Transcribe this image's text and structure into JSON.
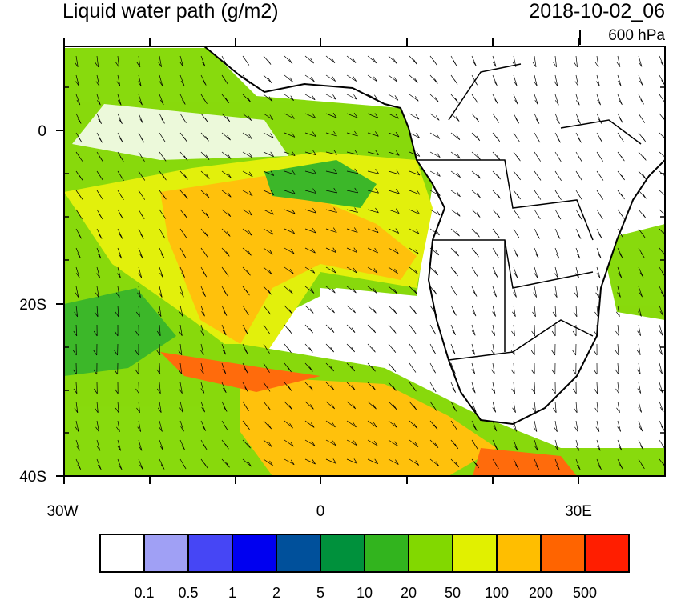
{
  "title": "Liquid water path (g/m2)",
  "date": "2018-10-02_06",
  "level": "600 hPa",
  "y_tick_labels": [
    "0",
    "20S",
    "40S"
  ],
  "x_tick_labels": [
    "30W",
    "0",
    "30E"
  ],
  "colorbar": {
    "colors": [
      "#ffffff",
      "#a0a0f5",
      "#4646f5",
      "#0000f0",
      "#00509b",
      "#00913c",
      "#32b41e",
      "#82d800",
      "#e1f000",
      "#ffbe00",
      "#ff6400",
      "#ff1e00"
    ],
    "labels": [
      "0.1",
      "0.5",
      "1",
      "2",
      "5",
      "10",
      "20",
      "50",
      "100",
      "200",
      "500"
    ]
  }
}
